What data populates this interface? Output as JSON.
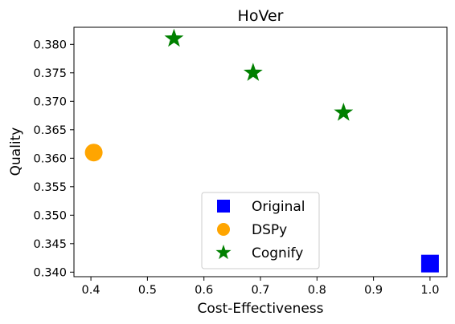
{
  "chart_data": {
    "type": "scatter",
    "title": "HoVer",
    "xlabel": "Cost-Effectiveness",
    "ylabel": "Quality",
    "xlim": [
      0.37,
      1.03
    ],
    "ylim": [
      0.3392,
      0.383
    ],
    "xticks": [
      "0.4",
      "0.5",
      "0.6",
      "0.7",
      "0.8",
      "0.9",
      "1.0"
    ],
    "yticks": [
      "0.340",
      "0.345",
      "0.350",
      "0.355",
      "0.360",
      "0.365",
      "0.370",
      "0.375",
      "0.380"
    ],
    "grid": false,
    "legend_position": "lower center",
    "series": [
      {
        "name": "Original",
        "marker": "square",
        "color": "#0000ff",
        "points": [
          {
            "x": 1.0,
            "y": 0.3415
          }
        ]
      },
      {
        "name": "DSPy",
        "marker": "circle",
        "color": "#ffa500",
        "points": [
          {
            "x": 0.405,
            "y": 0.361
          }
        ]
      },
      {
        "name": "Cognify",
        "marker": "star",
        "color": "#008000",
        "points": [
          {
            "x": 0.547,
            "y": 0.381
          },
          {
            "x": 0.687,
            "y": 0.375
          },
          {
            "x": 0.847,
            "y": 0.368
          }
        ]
      }
    ]
  }
}
